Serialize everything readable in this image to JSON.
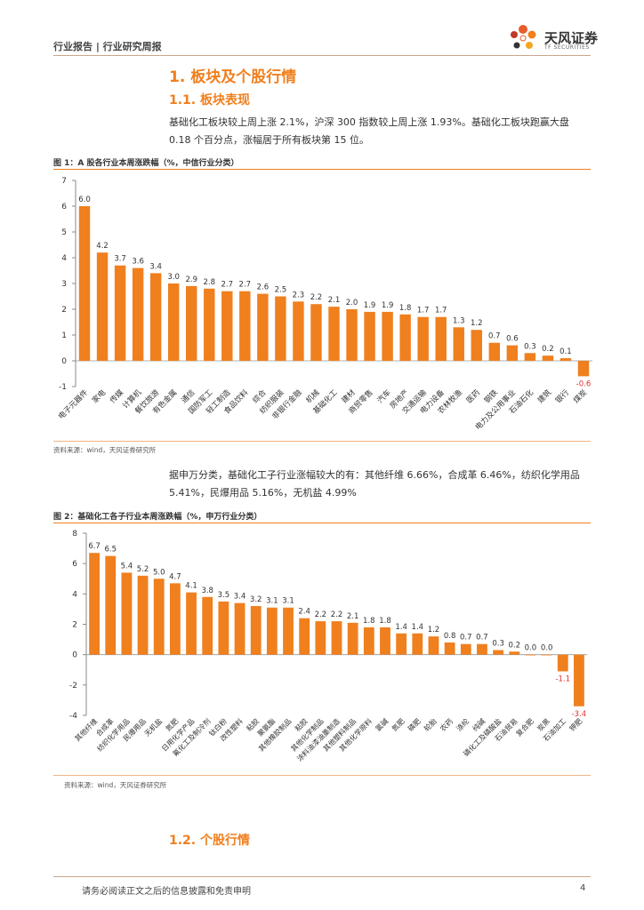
{
  "header": {
    "section_label": "行业报告 | 行业研究周报",
    "logo_cn": "天风证券",
    "logo_en": "TF SECURITIES"
  },
  "section1": {
    "title": "1. 板块及个股行情",
    "sub1_title": "1.1. 板块表现",
    "para1": "基础化工板块较上周上涨 2.1%，沪深 300 指数较上周上涨 1.93%。基础化工板块跑赢大盘 0.18 个百分点，涨幅居于所有板块第 15 位。",
    "para2": "据申万分类，基础化工子行业涨幅较大的有：其他纤维 6.66%，合成革 6.46%，纺织化学用品 5.41%，民爆用品 5.16%，无机盐 4.99%",
    "sub2_title": "1.2. 个股行情"
  },
  "figure1": {
    "title": "图 1：A 股各行业本周涨跌幅（%，中信行业分类）",
    "source": "资料来源：wind，天风证券研究所"
  },
  "figure2": {
    "title": "图 2：基础化工各子行业本周涨跌幅（%，申万行业分类）",
    "source": "资料来源：wind，天风证券研究所"
  },
  "footer": {
    "disclaimer": "请务必阅读正文之后的信息披露和免责申明",
    "page": "4"
  },
  "colors": {
    "accent": "#f07f1e",
    "negative_label": "#e0302c"
  },
  "chart_data": [
    {
      "type": "bar",
      "title": "图 1：A 股各行业本周涨跌幅（%，中信行业分类）",
      "ylim": [
        -1,
        7
      ],
      "yticks": [
        -1,
        0,
        1,
        2,
        3,
        4,
        5,
        6,
        7
      ],
      "categories": [
        "电子元器件",
        "家电",
        "传媒",
        "计算机",
        "餐饮旅游",
        "有色金属",
        "通信",
        "国防军工",
        "轻工制造",
        "食品饮料",
        "综合",
        "纺织服装",
        "非银行金融",
        "机械",
        "基础化工",
        "建材",
        "商贸零售",
        "汽车",
        "房地产",
        "交通运输",
        "电力设备",
        "农林牧渔",
        "医药",
        "钢铁",
        "电力及公用事业",
        "石油石化",
        "建筑",
        "银行",
        "煤炭"
      ],
      "values": [
        6.0,
        4.2,
        3.7,
        3.6,
        3.4,
        3.0,
        2.9,
        2.8,
        2.7,
        2.7,
        2.6,
        2.5,
        2.3,
        2.2,
        2.1,
        2.0,
        1.9,
        1.9,
        1.8,
        1.7,
        1.7,
        1.3,
        1.2,
        0.7,
        0.6,
        0.3,
        0.2,
        0.1,
        -0.6
      ],
      "labels": [
        "6.0",
        "4.2",
        "3.7",
        "3.6",
        "3.4",
        "3.0",
        "2.9",
        "2.8",
        "2.7",
        "2.7",
        "2.6",
        "2.5",
        "2.3",
        "2.2",
        "2.1",
        "2.0",
        "1.9",
        "1.9",
        "1.8",
        "1.7",
        "1.7",
        "1.3",
        "1.2",
        "0.7",
        "0.6",
        "0.3",
        "0.2",
        "0.1",
        "-0.6"
      ]
    },
    {
      "type": "bar",
      "title": "图 2：基础化工各子行业本周涨跌幅（%，申万行业分类）",
      "ylim": [
        -4,
        8
      ],
      "yticks": [
        -4,
        -2,
        0,
        2,
        4,
        6,
        8
      ],
      "categories": [
        "其他纤维",
        "合成革",
        "纺织化学用品",
        "民爆用品",
        "无机盐",
        "氮肥",
        "日用化学产品",
        "氟化工及制冷剂",
        "钛白粉",
        "改性塑料",
        "粘胶",
        "聚氨酯",
        "其他橡胶制品",
        "粘胶",
        "其他化学制品",
        "涂料油漆油墨制造",
        "其他塑料制品",
        "其他化学原料",
        "氯碱",
        "氮肥",
        "磷肥",
        "轮胎",
        "农药",
        "涤纶",
        "纯碱",
        "磷化工及磷酸盐",
        "石油贸易",
        "复合肥",
        "炭黑",
        "石油加工",
        "钾肥"
      ],
      "values": [
        6.7,
        6.5,
        5.4,
        5.2,
        5.0,
        4.7,
        4.1,
        3.8,
        3.5,
        3.4,
        3.2,
        3.1,
        3.1,
        2.4,
        2.2,
        2.2,
        2.1,
        1.8,
        1.8,
        1.4,
        1.4,
        1.2,
        0.8,
        0.7,
        0.7,
        0.3,
        0.2,
        0.0,
        0.0,
        -1.1,
        -3.4
      ],
      "labels": [
        "6.7",
        "6.5",
        "5.4",
        "5.2",
        "5.0",
        "4.7",
        "4.1",
        "3.8",
        "3.5",
        "3.4",
        "3.2",
        "3.1",
        "3.1",
        "2.4",
        "2.2",
        "2.2",
        "2.1",
        "1.8",
        "1.8",
        "1.4",
        "1.4",
        "1.2",
        "0.8",
        "0.7",
        "0.7",
        "0.3",
        "0.2",
        "0.0",
        "0.0",
        "-1.1",
        "-3.4"
      ]
    }
  ]
}
